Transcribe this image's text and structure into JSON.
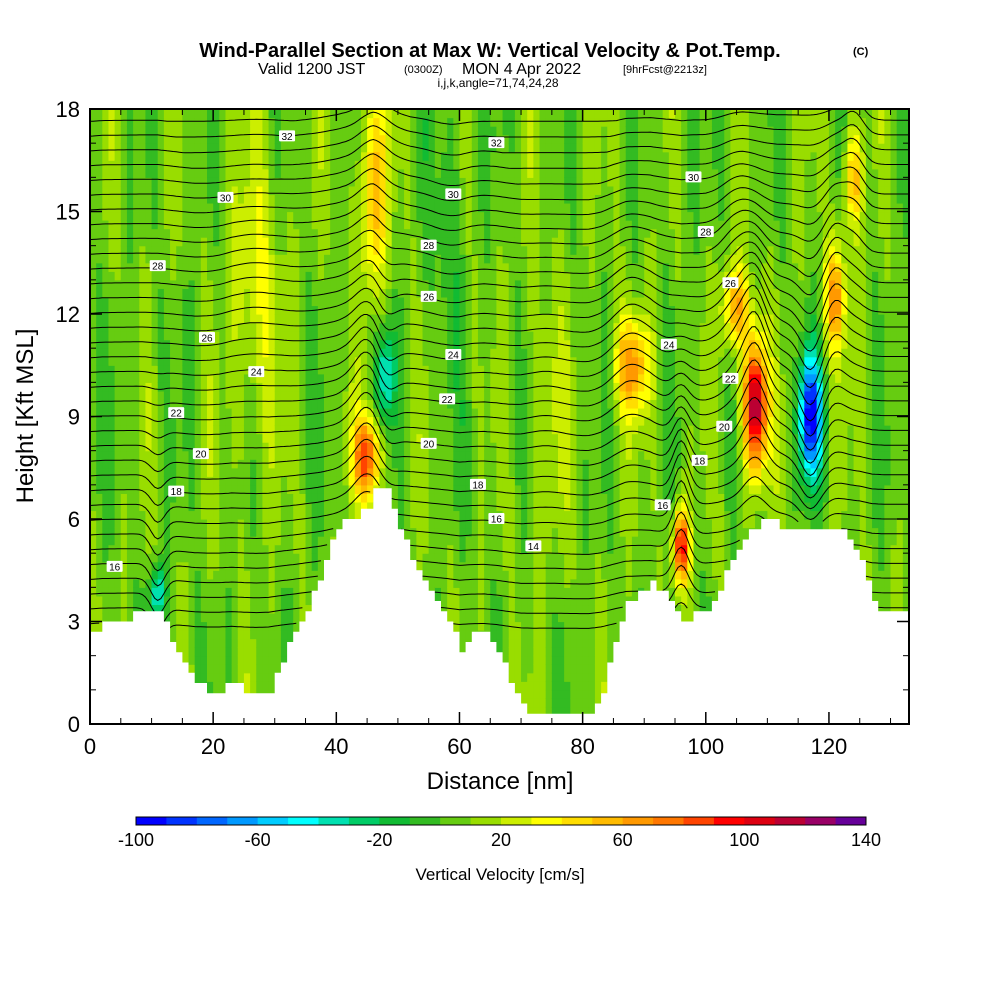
{
  "title": {
    "main": "Wind-Parallel Section at Max W: Vertical Velocity & Pot.Temp.",
    "copyright": "(C)",
    "valid_prefix": "Valid 1200 JST",
    "valid_utc": "(0300Z)",
    "valid_date": "MON 4 Apr 2022",
    "forecast": "[9hrFcst@2213z]",
    "grid_info": "i,j,k,angle=71,74,24,28"
  },
  "chart_data": {
    "type": "heatmap",
    "xlabel": "Distance [nm]",
    "ylabel": "Height [Kft MSL]",
    "xlim": [
      0,
      133
    ],
    "ylim": [
      0,
      18
    ],
    "x_ticks": [
      0,
      20,
      40,
      60,
      80,
      100,
      120
    ],
    "x_tick_labels": [
      "0",
      "20",
      "40",
      "60",
      "80",
      "100",
      "120"
    ],
    "y_ticks": [
      0,
      3,
      6,
      9,
      12,
      15,
      18
    ],
    "y_tick_labels": [
      "0",
      "3",
      "6",
      "9",
      "12",
      "15",
      "18"
    ],
    "colorbar": {
      "label": "Vertical Velocity [cm/s]",
      "min": -100,
      "max": 140,
      "step": 10,
      "tick_values": [
        -100,
        -60,
        -20,
        20,
        60,
        100,
        140
      ],
      "tick_labels": [
        "-100",
        "-60",
        "-20",
        "20",
        "60",
        "100",
        "140"
      ],
      "colors": [
        "#0000ff",
        "#0033ff",
        "#0066ff",
        "#0099ff",
        "#00ccff",
        "#00ffff",
        "#00e0b0",
        "#00cc66",
        "#11bb33",
        "#33bb22",
        "#66cc11",
        "#99dd00",
        "#ccee00",
        "#ffff00",
        "#ffdd00",
        "#ffbb00",
        "#ff9900",
        "#ff7700",
        "#ff4400",
        "#ff0000",
        "#dd0011",
        "#bb0033",
        "#990066",
        "#660099"
      ]
    },
    "terrain_kft": [
      [
        0,
        2.6
      ],
      [
        2,
        3.0
      ],
      [
        5,
        3.1
      ],
      [
        8,
        3.2
      ],
      [
        11,
        3.2
      ],
      [
        13,
        2.5
      ],
      [
        15,
        1.8
      ],
      [
        17,
        1.2
      ],
      [
        19,
        1.0
      ],
      [
        21,
        1.0
      ],
      [
        23,
        1.3
      ],
      [
        25,
        1.0
      ],
      [
        27,
        0.8
      ],
      [
        29,
        1.0
      ],
      [
        31,
        1.9
      ],
      [
        33,
        2.6
      ],
      [
        35,
        3.4
      ],
      [
        37,
        4.2
      ],
      [
        39,
        5.3
      ],
      [
        41,
        6.1
      ],
      [
        43,
        6.1
      ],
      [
        45,
        6.3
      ],
      [
        46,
        6.9
      ],
      [
        48,
        6.8
      ],
      [
        50,
        5.8
      ],
      [
        52,
        4.8
      ],
      [
        54,
        4.2
      ],
      [
        56,
        3.6
      ],
      [
        58,
        3.0
      ],
      [
        60,
        2.2
      ],
      [
        62,
        2.6
      ],
      [
        64,
        2.7
      ],
      [
        66,
        2.2
      ],
      [
        68,
        1.3
      ],
      [
        70,
        0.5
      ],
      [
        72,
        0.3
      ],
      [
        75,
        0.3
      ],
      [
        78,
        0.3
      ],
      [
        81,
        0.3
      ],
      [
        83,
        1.0
      ],
      [
        85,
        2.4
      ],
      [
        87,
        3.6
      ],
      [
        89,
        3.8
      ],
      [
        91,
        4.2
      ],
      [
        93,
        3.8
      ],
      [
        95,
        3.3
      ],
      [
        96,
        2.9
      ],
      [
        98,
        3.3
      ],
      [
        100,
        3.3
      ],
      [
        102,
        3.9
      ],
      [
        104,
        4.8
      ],
      [
        106,
        5.5
      ],
      [
        108,
        5.8
      ],
      [
        110,
        5.9
      ],
      [
        112,
        5.8
      ],
      [
        114,
        5.8
      ],
      [
        118,
        5.8
      ],
      [
        121,
        5.8
      ],
      [
        123,
        5.3
      ],
      [
        125,
        4.8
      ],
      [
        127,
        3.5
      ],
      [
        129,
        3.2
      ],
      [
        133,
        3.2
      ]
    ],
    "wcells": [
      {
        "x": 46,
        "y": 15.5,
        "sx": 2.4,
        "sy": 3.0,
        "w": 45
      },
      {
        "x": 45,
        "y": 7.8,
        "sx": 2.2,
        "sy": 1.2,
        "w": 80
      },
      {
        "x": 48,
        "y": 10.2,
        "sx": 1.6,
        "sy": 1.4,
        "w": -45
      },
      {
        "x": 88,
        "y": 10.5,
        "sx": 3.0,
        "sy": 1.4,
        "w": 55
      },
      {
        "x": 96,
        "y": 5.2,
        "sx": 1.3,
        "sy": 1.1,
        "w": 95
      },
      {
        "x": 108,
        "y": 9.3,
        "sx": 1.9,
        "sy": 1.9,
        "w": 120
      },
      {
        "x": 105,
        "y": 12.2,
        "sx": 2.3,
        "sy": 1.2,
        "w": 55
      },
      {
        "x": 117,
        "y": 9.0,
        "sx": 1.8,
        "sy": 1.8,
        "w": -100
      },
      {
        "x": 121,
        "y": 12.5,
        "sx": 1.7,
        "sy": 1.6,
        "w": 60
      },
      {
        "x": 124,
        "y": 16.0,
        "sx": 1.6,
        "sy": 1.5,
        "w": 50
      },
      {
        "x": 11,
        "y": 3.8,
        "sx": 1.2,
        "sy": 0.8,
        "w": -55
      },
      {
        "x": 27,
        "y": 12.5,
        "sx": 4.0,
        "sy": 4.5,
        "w": 25
      },
      {
        "x": 74,
        "y": 9.0,
        "sx": 3.0,
        "sy": 4.5,
        "w": 15
      },
      {
        "x": 58,
        "y": 14.5,
        "sx": 2.5,
        "sy": 4.0,
        "w": -15
      }
    ],
    "theta_levels": [
      {
        "base": 2.7,
        "label": "16",
        "lx": 4,
        "label_y": 4.6
      },
      {
        "base": 7.3,
        "label": "18",
        "lx": 14,
        "label_y": 6.8
      },
      {
        "base": 8.1,
        "label": "20",
        "lx": 18,
        "label_y": 7.9
      },
      {
        "base": 9.2,
        "label": "22",
        "lx": 14,
        "label_y": 9.1
      },
      {
        "base": 10.7,
        "label": "24",
        "lx": 27,
        "label_y": 10.3
      },
      {
        "base": 11.6,
        "label": "26",
        "lx": 19,
        "label_y": 11.3
      },
      {
        "base": 13.5,
        "label": "28",
        "lx": 11,
        "label_y": 13.4
      },
      {
        "base": 15.4,
        "label": "30",
        "lx": 22,
        "label_y": 15.4
      },
      {
        "base": 17.4,
        "label": "32",
        "lx": 32,
        "label_y": 17.2
      }
    ],
    "theta_labels_extra": [
      {
        "label": "14",
        "x": 72,
        "y": 5.2
      },
      {
        "label": "16",
        "x": 66,
        "y": 6.0
      },
      {
        "label": "18",
        "x": 63,
        "y": 7.0
      },
      {
        "label": "20",
        "x": 55,
        "y": 8.2
      },
      {
        "label": "22",
        "x": 58,
        "y": 9.5
      },
      {
        "label": "24",
        "x": 59,
        "y": 10.8
      },
      {
        "label": "26",
        "x": 55,
        "y": 12.5
      },
      {
        "label": "28",
        "x": 55,
        "y": 14.0
      },
      {
        "label": "30",
        "x": 59,
        "y": 15.5
      },
      {
        "label": "32",
        "x": 66,
        "y": 17.0
      },
      {
        "label": "16",
        "x": 93,
        "y": 6.4
      },
      {
        "label": "18",
        "x": 99,
        "y": 7.7
      },
      {
        "label": "20",
        "x": 103,
        "y": 8.7
      },
      {
        "label": "22",
        "x": 104,
        "y": 10.1
      },
      {
        "label": "24",
        "x": 94,
        "y": 11.1
      },
      {
        "label": "26",
        "x": 104,
        "y": 12.9
      },
      {
        "label": "28",
        "x": 100,
        "y": 14.4
      },
      {
        "label": "30",
        "x": 98,
        "y": 16.0
      }
    ]
  }
}
